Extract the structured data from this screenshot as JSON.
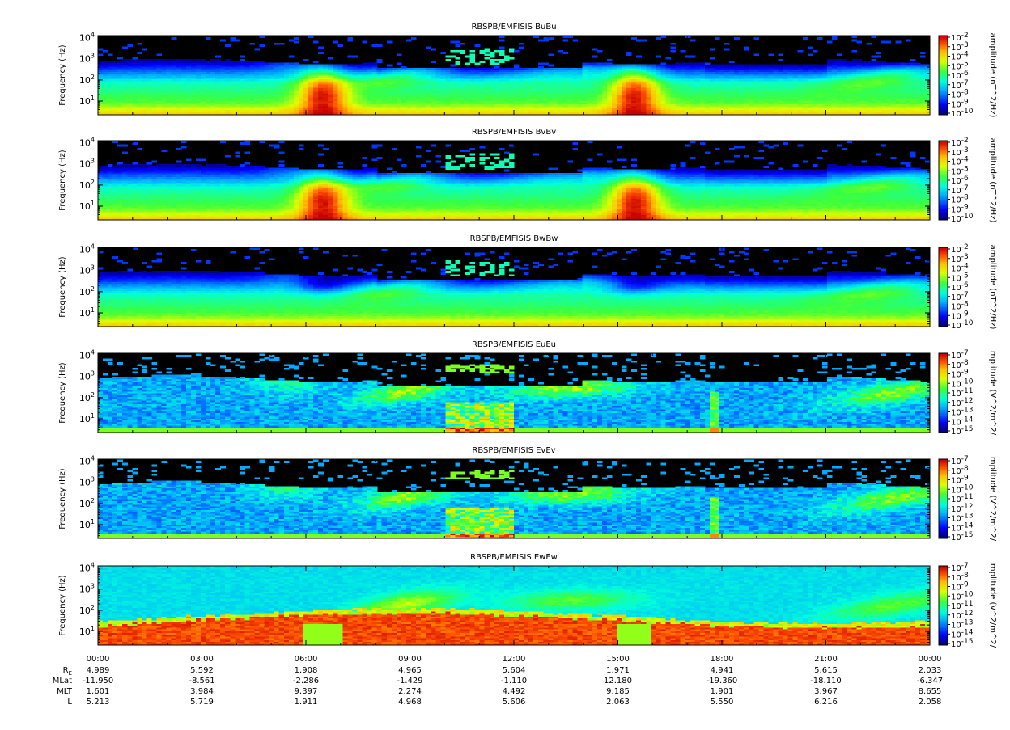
{
  "chart_data": {
    "type": "heatmap",
    "time_ticks": [
      "00:00",
      "03:00",
      "06:00",
      "09:00",
      "12:00",
      "15:00",
      "18:00",
      "21:00",
      "00:00"
    ],
    "ylabel": "Frequency (Hz)",
    "y_scale": "log",
    "y_tick_labels": [
      {
        "base": "10",
        "exp": "1"
      },
      {
        "base": "10",
        "exp": "2"
      },
      {
        "base": "10",
        "exp": "3"
      },
      {
        "base": "10",
        "exp": "4"
      }
    ],
    "panels": [
      {
        "title": "RBSPB/EMFISIS  BuBu",
        "colorbar_label": "amplitude (nT^2/Hz)",
        "colorbar_exponents": [
          "-2",
          "-3",
          "-4",
          "-5",
          "-6",
          "-7",
          "-8",
          "-9",
          "-10"
        ],
        "style": "B",
        "seed": 11
      },
      {
        "title": "RBSPB/EMFISIS  BvBv",
        "colorbar_label": "amplitude (nT^2/Hz)",
        "colorbar_exponents": [
          "-2",
          "-3",
          "-4",
          "-5",
          "-6",
          "-7",
          "-8",
          "-9",
          "-10"
        ],
        "style": "B",
        "seed": 23
      },
      {
        "title": "RBSPB/EMFISIS  BwBw",
        "colorbar_label": "amplitude (nT^2/Hz)",
        "colorbar_exponents": [
          "-2",
          "-3",
          "-4",
          "-5",
          "-6",
          "-7",
          "-8",
          "-9",
          "-10"
        ],
        "style": "Bw",
        "seed": 37
      },
      {
        "title": "RBSPB/EMFISIS  EuEu",
        "colorbar_label": "mplitude (V^2/m^2/",
        "colorbar_exponents": [
          "-7",
          "-8",
          "-9",
          "-10",
          "-11",
          "-12",
          "-13",
          "-14",
          "-15"
        ],
        "style": "E",
        "seed": 41
      },
      {
        "title": "RBSPB/EMFISIS  EvEv",
        "colorbar_label": "mplitude (V^2/m^2/",
        "colorbar_exponents": [
          "-7",
          "-8",
          "-9",
          "-10",
          "-11",
          "-12",
          "-13",
          "-14",
          "-15"
        ],
        "style": "E",
        "seed": 53
      },
      {
        "title": "RBSPB/EMFISIS  EwEw",
        "colorbar_label": "mplitude (V^2/m^2/",
        "colorbar_exponents": [
          "-7",
          "-8",
          "-9",
          "-10",
          "-11",
          "-12",
          "-13",
          "-14",
          "-15"
        ],
        "style": "Ew",
        "seed": 67
      }
    ],
    "ephemeris": {
      "rows": [
        {
          "label": "R",
          "sub": "E",
          "values": [
            "4.989",
            "5.592",
            "1.908",
            "4.965",
            "5.604",
            "1.971",
            "4.941",
            "5.615",
            "2.033"
          ]
        },
        {
          "label": "MLat",
          "sub": "",
          "values": [
            "-11.950",
            "-8.561",
            "-2.286",
            "-1.429",
            "-1.110",
            "12.180",
            "-19.360",
            "-18.110",
            "-6.347"
          ]
        },
        {
          "label": "MLT",
          "sub": "",
          "values": [
            "1.601",
            "3.984",
            "9.397",
            "2.274",
            "4.492",
            "9.185",
            "1.901",
            "3.967",
            "8.655"
          ]
        },
        {
          "label": "L",
          "sub": "",
          "values": [
            "5.213",
            "5.719",
            "1.911",
            "4.968",
            "5.606",
            "2.063",
            "5.550",
            "6.216",
            "2.058"
          ]
        }
      ]
    }
  }
}
